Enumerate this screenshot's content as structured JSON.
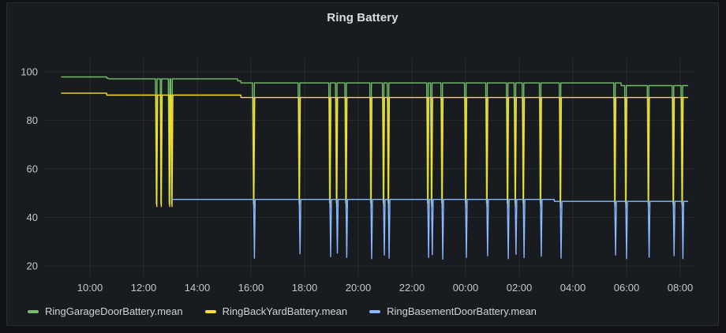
{
  "panel": {
    "background": "#181b1f",
    "outer_background": "#0f1116",
    "border_color": "#2c3235"
  },
  "chart_data": {
    "type": "line",
    "title": "Ring Battery",
    "xlabel": "",
    "ylabel": "",
    "grid": true,
    "legend_position": "bottom-left",
    "x_axis": {
      "unit": "time",
      "tick_labels": [
        "10:00",
        "12:00",
        "14:00",
        "16:00",
        "18:00",
        "20:00",
        "22:00",
        "00:00",
        "02:00",
        "04:00",
        "06:00",
        "08:00"
      ],
      "tick_hours": [
        10,
        12,
        14,
        16,
        18,
        20,
        22,
        24,
        26,
        28,
        30,
        32
      ]
    },
    "y_axis": {
      "tick_labels": [
        "100",
        "80",
        "60",
        "40",
        "20"
      ],
      "tick_values": [
        100,
        80,
        60,
        40,
        20
      ],
      "ylim": [
        17.4,
        105.5
      ]
    },
    "series": [
      {
        "name": "RingGarageDoorBattery.mean",
        "color": "#73bf69",
        "points": [
          [
            8.94,
            97.9
          ],
          [
            10.62,
            97.9
          ],
          [
            10.63,
            97.4
          ],
          [
            10.68,
            97.4
          ],
          [
            10.69,
            97.1
          ],
          [
            12.44,
            97.1
          ],
          [
            12.47,
            45.5
          ],
          [
            12.5,
            97.1
          ],
          [
            12.62,
            97.1
          ],
          [
            12.64,
            45.5
          ],
          [
            12.67,
            97.1
          ],
          [
            12.92,
            97.1
          ],
          [
            12.95,
            45.5
          ],
          [
            12.98,
            97.1
          ],
          [
            13.01,
            97.1
          ],
          [
            13.04,
            45.5
          ],
          [
            13.07,
            97.1
          ],
          [
            15.5,
            97.1
          ],
          [
            15.51,
            96.3
          ],
          [
            15.62,
            96.3
          ],
          [
            15.63,
            95.4
          ],
          [
            16.06,
            95.4
          ],
          [
            16.09,
            45.5
          ],
          [
            16.13,
            95.4
          ],
          [
            17.76,
            95.4
          ],
          [
            17.79,
            46
          ],
          [
            17.82,
            95.4
          ],
          [
            18.9,
            95.4
          ],
          [
            18.93,
            46
          ],
          [
            18.96,
            95.4
          ],
          [
            19.15,
            95.4
          ],
          [
            19.18,
            46
          ],
          [
            19.21,
            95.4
          ],
          [
            19.5,
            95.4
          ],
          [
            19.53,
            46
          ],
          [
            19.56,
            95.4
          ],
          [
            20.43,
            95.4
          ],
          [
            20.46,
            46
          ],
          [
            20.49,
            95.4
          ],
          [
            20.9,
            95.4
          ],
          [
            20.93,
            46
          ],
          [
            20.96,
            95.4
          ],
          [
            21.08,
            95.4
          ],
          [
            21.11,
            46
          ],
          [
            21.14,
            95.4
          ],
          [
            22.55,
            95.4
          ],
          [
            22.58,
            46
          ],
          [
            22.61,
            95.4
          ],
          [
            22.69,
            95.4
          ],
          [
            22.72,
            46
          ],
          [
            22.75,
            95.4
          ],
          [
            23.08,
            95.4
          ],
          [
            23.11,
            46
          ],
          [
            23.14,
            95.4
          ],
          [
            23.96,
            95.4
          ],
          [
            23.99,
            46
          ],
          [
            24.02,
            95.4
          ],
          [
            24.75,
            95.4
          ],
          [
            24.78,
            46
          ],
          [
            24.81,
            95.4
          ],
          [
            25.52,
            95.4
          ],
          [
            25.55,
            46
          ],
          [
            25.58,
            95.4
          ],
          [
            25.81,
            95.4
          ],
          [
            25.84,
            46
          ],
          [
            25.87,
            95.4
          ],
          [
            26.11,
            95.4
          ],
          [
            26.14,
            46
          ],
          [
            26.17,
            95.4
          ],
          [
            26.75,
            95.4
          ],
          [
            26.78,
            46
          ],
          [
            26.81,
            95.4
          ],
          [
            27.49,
            95.4
          ],
          [
            27.52,
            46
          ],
          [
            27.55,
            95.4
          ],
          [
            29.52,
            95.4
          ],
          [
            29.55,
            46
          ],
          [
            29.58,
            95.4
          ],
          [
            29.79,
            95.4
          ],
          [
            29.8,
            94.3
          ],
          [
            29.93,
            94.3
          ],
          [
            29.96,
            46
          ],
          [
            29.99,
            94.3
          ],
          [
            30.77,
            94.3
          ],
          [
            30.8,
            46
          ],
          [
            30.83,
            94.3
          ],
          [
            31.7,
            94.3
          ],
          [
            31.73,
            45.5
          ],
          [
            31.76,
            94.3
          ],
          [
            32.03,
            94.3
          ],
          [
            32.06,
            45.5
          ],
          [
            32.09,
            94.3
          ],
          [
            32.28,
            94.3
          ]
        ]
      },
      {
        "name": "RingBackYardBattery.mean",
        "color": "#fade2a",
        "points": [
          [
            8.94,
            91.2
          ],
          [
            10.62,
            91.2
          ],
          [
            10.63,
            90.4
          ],
          [
            12.46,
            90.4
          ],
          [
            12.49,
            44.5
          ],
          [
            12.52,
            90.4
          ],
          [
            12.63,
            90.4
          ],
          [
            12.66,
            44.5
          ],
          [
            12.69,
            90.4
          ],
          [
            12.94,
            90.4
          ],
          [
            12.97,
            44.5
          ],
          [
            13.0,
            90.4
          ],
          [
            13.03,
            90.4
          ],
          [
            13.06,
            44.5
          ],
          [
            13.09,
            90.4
          ],
          [
            15.62,
            90.4
          ],
          [
            15.63,
            89.4
          ],
          [
            16.08,
            89.4
          ],
          [
            16.11,
            44
          ],
          [
            16.14,
            89.4
          ],
          [
            17.78,
            89.4
          ],
          [
            17.81,
            45
          ],
          [
            17.84,
            89.4
          ],
          [
            18.92,
            89.4
          ],
          [
            18.95,
            44
          ],
          [
            18.98,
            89.4
          ],
          [
            19.17,
            89.4
          ],
          [
            19.2,
            44.5
          ],
          [
            19.23,
            89.4
          ],
          [
            19.52,
            89.4
          ],
          [
            19.55,
            44
          ],
          [
            19.58,
            89.4
          ],
          [
            20.45,
            89.4
          ],
          [
            20.48,
            44
          ],
          [
            20.51,
            89.4
          ],
          [
            20.92,
            89.4
          ],
          [
            20.95,
            44.5
          ],
          [
            20.98,
            89.4
          ],
          [
            21.1,
            89.4
          ],
          [
            21.13,
            44
          ],
          [
            21.16,
            89.4
          ],
          [
            22.57,
            89.4
          ],
          [
            22.6,
            44
          ],
          [
            22.63,
            89.4
          ],
          [
            22.71,
            89.4
          ],
          [
            22.74,
            44.5
          ],
          [
            22.77,
            89.4
          ],
          [
            23.1,
            89.4
          ],
          [
            23.13,
            44
          ],
          [
            23.16,
            89.4
          ],
          [
            23.98,
            89.4
          ],
          [
            24.01,
            44
          ],
          [
            24.04,
            89.4
          ],
          [
            24.77,
            89.4
          ],
          [
            24.8,
            44.5
          ],
          [
            24.83,
            89.4
          ],
          [
            25.54,
            89.4
          ],
          [
            25.57,
            44
          ],
          [
            25.6,
            89.4
          ],
          [
            25.83,
            89.4
          ],
          [
            25.86,
            44.5
          ],
          [
            25.89,
            89.4
          ],
          [
            26.13,
            89.4
          ],
          [
            26.16,
            44
          ],
          [
            26.19,
            89.4
          ],
          [
            26.77,
            89.4
          ],
          [
            26.8,
            44.5
          ],
          [
            26.83,
            89.4
          ],
          [
            27.51,
            89.4
          ],
          [
            27.54,
            44
          ],
          [
            27.57,
            89.4
          ],
          [
            29.54,
            89.4
          ],
          [
            29.57,
            44.5
          ],
          [
            29.6,
            89.4
          ],
          [
            29.95,
            89.4
          ],
          [
            29.98,
            44
          ],
          [
            30.01,
            89.4
          ],
          [
            30.79,
            89.4
          ],
          [
            30.82,
            44.5
          ],
          [
            30.85,
            89.4
          ],
          [
            31.72,
            89.4
          ],
          [
            31.75,
            44
          ],
          [
            31.78,
            89.4
          ],
          [
            32.05,
            89.4
          ],
          [
            32.08,
            44.5
          ],
          [
            32.11,
            89.4
          ],
          [
            32.28,
            89.4
          ]
        ]
      },
      {
        "name": "RingBasementDoorBattery.mean",
        "color": "#8ab8ff",
        "points": [
          [
            13.06,
            47.4
          ],
          [
            16.1,
            47.4
          ],
          [
            16.13,
            23.2
          ],
          [
            16.16,
            47.4
          ],
          [
            17.8,
            47.4
          ],
          [
            17.83,
            25
          ],
          [
            17.86,
            47.4
          ],
          [
            18.94,
            47.4
          ],
          [
            18.97,
            23.8
          ],
          [
            19.0,
            47.4
          ],
          [
            19.19,
            47.4
          ],
          [
            19.22,
            25.3
          ],
          [
            19.25,
            47.4
          ],
          [
            19.54,
            47.4
          ],
          [
            19.57,
            23.5
          ],
          [
            19.6,
            47.4
          ],
          [
            20.47,
            47.4
          ],
          [
            20.5,
            23
          ],
          [
            20.53,
            47.4
          ],
          [
            20.94,
            47.4
          ],
          [
            20.97,
            24.5
          ],
          [
            21.0,
            47.4
          ],
          [
            21.12,
            47.4
          ],
          [
            21.15,
            23.2
          ],
          [
            21.18,
            47.4
          ],
          [
            22.59,
            47.4
          ],
          [
            22.62,
            23.5
          ],
          [
            22.65,
            47.4
          ],
          [
            22.73,
            47.4
          ],
          [
            22.76,
            24.6
          ],
          [
            22.79,
            47.4
          ],
          [
            23.12,
            47.4
          ],
          [
            23.15,
            22.8
          ],
          [
            23.18,
            47.4
          ],
          [
            24.0,
            47.4
          ],
          [
            24.03,
            23.5
          ],
          [
            24.06,
            47.4
          ],
          [
            24.79,
            47.4
          ],
          [
            24.82,
            24.2
          ],
          [
            24.85,
            47.4
          ],
          [
            25.56,
            47.4
          ],
          [
            25.59,
            23
          ],
          [
            25.62,
            47.4
          ],
          [
            25.85,
            47.4
          ],
          [
            25.88,
            24.8
          ],
          [
            25.91,
            47.4
          ],
          [
            26.15,
            47.4
          ],
          [
            26.18,
            23.4
          ],
          [
            26.21,
            47.4
          ],
          [
            26.79,
            47.4
          ],
          [
            26.82,
            24
          ],
          [
            26.85,
            47.4
          ],
          [
            27.3,
            47.4
          ],
          [
            27.31,
            46.6
          ],
          [
            27.53,
            46.6
          ],
          [
            27.56,
            23.2
          ],
          [
            27.59,
            46.6
          ],
          [
            29.56,
            46.6
          ],
          [
            29.59,
            24.5
          ],
          [
            29.62,
            46.6
          ],
          [
            29.97,
            46.6
          ],
          [
            30.0,
            23
          ],
          [
            30.03,
            46.6
          ],
          [
            30.81,
            46.6
          ],
          [
            30.84,
            23.6
          ],
          [
            30.87,
            46.6
          ],
          [
            31.74,
            46.6
          ],
          [
            31.77,
            24.2
          ],
          [
            31.8,
            46.6
          ],
          [
            32.07,
            46.6
          ],
          [
            32.1,
            23
          ],
          [
            32.13,
            46.6
          ],
          [
            32.28,
            46.6
          ]
        ]
      }
    ]
  }
}
